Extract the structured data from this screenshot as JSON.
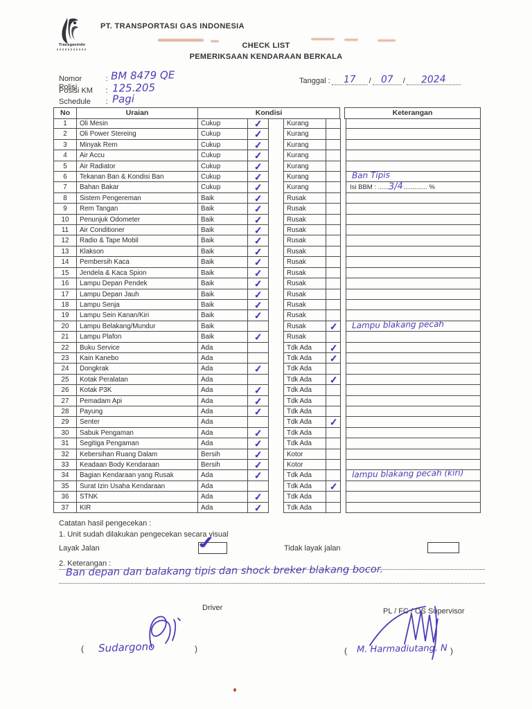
{
  "header": {
    "company": "PT. TRANSPORTASI GAS INDONESIA",
    "brand": "Transgasindo",
    "title1": "CHECK LIST",
    "title2": "PEMERIKSAAN KENDARAAN BERKALA"
  },
  "fields": {
    "nomor_polisi_label": "Nomor Polisi",
    "nomor_polisi_value": "BM 8479 QE",
    "posisi_km_label": "Posisi KM",
    "posisi_km_value": "125.205",
    "schedule_label": "Schedule",
    "schedule_value": "Pagi",
    "tanggal_label": "Tanggal :",
    "tanggal_day": "17",
    "tanggal_month": "07",
    "tanggal_year": "2024",
    "colon": ":",
    "slash": "/"
  },
  "table": {
    "headers": {
      "no": "No",
      "uraian": "Uraian",
      "kondisi": "Kondisi",
      "keterangan": "Keterangan"
    },
    "rows": [
      {
        "n": "1",
        "u": "Oli Mesin",
        "o1": "Cukup",
        "o2": "Kurang",
        "c": 1
      },
      {
        "n": "2",
        "u": "Oli Power Stereing",
        "o1": "Cukup",
        "o2": "Kurang",
        "c": 1
      },
      {
        "n": "3",
        "u": "Minyak Rem",
        "o1": "Cukup",
        "o2": "Kurang",
        "c": 1
      },
      {
        "n": "4",
        "u": "Air Accu",
        "o1": "Cukup",
        "o2": "Kurang",
        "c": 1
      },
      {
        "n": "5",
        "u": "Air Radiator",
        "o1": "Cukup",
        "o2": "Kurang",
        "c": 1
      },
      {
        "n": "6",
        "u": "Tekanan Ban & Kondisi Ban",
        "o1": "Cukup",
        "o2": "Kurang",
        "c": 1,
        "k": "hand",
        "kt": "Ban Tipis"
      },
      {
        "n": "7",
        "u": "Bahan Bakar",
        "o1": "Cukup",
        "o2": "Kurang",
        "c": 1,
        "k": "bbm",
        "pre": "Isi BBM : ......",
        "val": "3/4",
        "post": "............. %"
      },
      {
        "n": "8",
        "u": "Sistem Pengereman",
        "o1": "Baik",
        "o2": "Rusak",
        "c": 1
      },
      {
        "n": "9",
        "u": "Rem Tangan",
        "o1": "Baik",
        "o2": "Rusak",
        "c": 1
      },
      {
        "n": "10",
        "u": "Penunjuk Odometer",
        "o1": "Baik",
        "o2": "Rusak",
        "c": 1
      },
      {
        "n": "11",
        "u": "Air Conditioner",
        "o1": "Baik",
        "o2": "Rusak",
        "c": 1
      },
      {
        "n": "12",
        "u": "Radio & Tape Mobil",
        "o1": "Baik",
        "o2": "Rusak",
        "c": 1
      },
      {
        "n": "13",
        "u": "Klakson",
        "o1": "Baik",
        "o2": "Rusak",
        "c": 1
      },
      {
        "n": "14",
        "u": "Pembersih Kaca",
        "o1": "Baik",
        "o2": "Rusak",
        "c": 1
      },
      {
        "n": "15",
        "u": "Jendela & Kaca Spion",
        "o1": "Baik",
        "o2": "Rusak",
        "c": 1
      },
      {
        "n": "16",
        "u": "Lampu Depan Pendek",
        "o1": "Baik",
        "o2": "Rusak",
        "c": 1
      },
      {
        "n": "17",
        "u": "Lampu Depan Jauh",
        "o1": "Baik",
        "o2": "Rusak",
        "c": 1
      },
      {
        "n": "18",
        "u": "Lampu Senja",
        "o1": "Baik",
        "o2": "Rusak",
        "c": 1
      },
      {
        "n": "19",
        "u": "Lampu Sein Kanan/Kiri",
        "o1": "Baik",
        "o2": "Rusak",
        "c": 1
      },
      {
        "n": "20",
        "u": "Lampu Belakang/Mundur",
        "o1": "Baik",
        "o2": "Rusak",
        "c": 2,
        "k": "hand",
        "kt": "Lampu blakang pecah"
      },
      {
        "n": "21",
        "u": "Lampu Plafon",
        "o1": "Baik",
        "o2": "Rusak",
        "c": 1
      },
      {
        "n": "22",
        "u": "Buku Service",
        "o1": "Ada",
        "o2": "Tdk Ada",
        "c": 2
      },
      {
        "n": "23",
        "u": "Kain Kanebo",
        "o1": "Ada",
        "o2": "Tdk Ada",
        "c": 2
      },
      {
        "n": "24",
        "u": "Dongkrak",
        "o1": "Ada",
        "o2": "Tdk Ada",
        "c": 1
      },
      {
        "n": "25",
        "u": "Kotak Peralatan",
        "o1": "Ada",
        "o2": "Tdk Ada",
        "c": 2
      },
      {
        "n": "26",
        "u": "Kotak P3K",
        "o1": "Ada",
        "o2": "Tdk Ada",
        "c": 1
      },
      {
        "n": "27",
        "u": "Pemadam Api",
        "o1": "Ada",
        "o2": "Tdk Ada",
        "c": 1
      },
      {
        "n": "28",
        "u": "Payung",
        "o1": "Ada",
        "o2": "Tdk Ada",
        "c": 1
      },
      {
        "n": "29",
        "u": "Senter",
        "o1": "Ada",
        "o2": "Tdk Ada",
        "c": 2
      },
      {
        "n": "30",
        "u": "Sabuk Pengaman",
        "o1": "Ada",
        "o2": "Tdk Ada",
        "c": 1
      },
      {
        "n": "31",
        "u": "Segitiga Pengaman",
        "o1": "Ada",
        "o2": "Tdk Ada",
        "c": 1
      },
      {
        "n": "32",
        "u": "Kebersihan Ruang Dalam",
        "o1": "Bersih",
        "o2": "Kotor",
        "c": 1
      },
      {
        "n": "33",
        "u": "Keadaan Body Kendaraan",
        "o1": "Bersih",
        "o2": "Kotor",
        "c": 1
      },
      {
        "n": "34",
        "u": "Bagian Kendaraan yang Rusak",
        "o1": "Ada",
        "o2": "Tdk Ada",
        "c": 1,
        "k": "hand",
        "kt": "lampu blakang pecah (kiri)"
      },
      {
        "n": "35",
        "u": "Surat Izin Usaha Kendaraan",
        "o1": "Ada",
        "o2": "Tdk Ada",
        "c": 2
      },
      {
        "n": "36",
        "u": "STNK",
        "o1": "Ada",
        "o2": "Tdk Ada",
        "c": 1
      },
      {
        "n": "37",
        "u": "KIR",
        "o1": "Ada",
        "o2": "Tdk Ada",
        "c": 1
      }
    ]
  },
  "footer": {
    "catatan_title": "Catatan hasil pengecekan :",
    "catatan_line1": "1. Unit sudah dilakukan pengecekan secara visual",
    "layak_label": "Layak Jalan",
    "tidak_layak_label": "Tidak layak jalan",
    "keterangan_label": "2. Keterangan :",
    "keterangan_hand": "Ban depan dan balakang tipis dan shock breker blakang bocor.",
    "driver_label": "Driver",
    "supervisor_label": "PL / FC / OS Supervisor",
    "driver_name": "Sudargono",
    "supervisor_name": "M. Harmadiutang. N",
    "paren_open": "(",
    "paren_close": ")"
  },
  "colors": {
    "ink": "#4a3cb5",
    "printed": "#2d2d2d",
    "bleed": "#c66a46"
  },
  "icons": {
    "check": "✓"
  }
}
